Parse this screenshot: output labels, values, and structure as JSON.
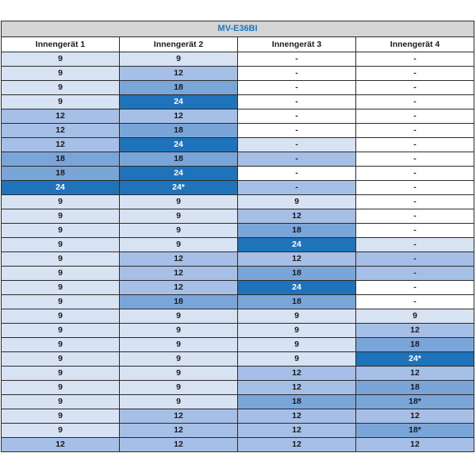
{
  "title": "MV-E36BI",
  "headers": [
    "Innengerät 1",
    "Innengerät 2",
    "Innengerät 3",
    "Innengerät 4"
  ],
  "rows": [
    [
      "9",
      "9",
      "-",
      "-"
    ],
    [
      "9",
      "12",
      "-",
      "-"
    ],
    [
      "9",
      "18",
      "-",
      "-"
    ],
    [
      "9",
      "24",
      "-",
      "-"
    ],
    [
      "12",
      "12",
      "-",
      "-"
    ],
    [
      "12",
      "18",
      "-",
      "-"
    ],
    [
      "12",
      "24",
      "-",
      "-"
    ],
    [
      "18",
      "18",
      "-",
      "-"
    ],
    [
      "18",
      "24",
      "-",
      "-"
    ],
    [
      "24",
      "24*",
      "-",
      "-"
    ],
    [
      "9",
      "9",
      "9",
      "-"
    ],
    [
      "9",
      "9",
      "12",
      "-"
    ],
    [
      "9",
      "9",
      "18",
      "-"
    ],
    [
      "9",
      "9",
      "24",
      "-"
    ],
    [
      "9",
      "12",
      "12",
      "-"
    ],
    [
      "9",
      "12",
      "18",
      "-"
    ],
    [
      "9",
      "12",
      "24",
      "-"
    ],
    [
      "9",
      "18",
      "18",
      "-"
    ],
    [
      "9",
      "9",
      "9",
      "9"
    ],
    [
      "9",
      "9",
      "9",
      "12"
    ],
    [
      "9",
      "9",
      "9",
      "18"
    ],
    [
      "9",
      "9",
      "9",
      "24*"
    ],
    [
      "9",
      "9",
      "12",
      "12"
    ],
    [
      "9",
      "9",
      "12",
      "18"
    ],
    [
      "9",
      "9",
      "18",
      "18*"
    ],
    [
      "9",
      "12",
      "12",
      "12"
    ],
    [
      "9",
      "12",
      "12",
      "18*"
    ],
    [
      "12",
      "12",
      "12",
      "12"
    ]
  ],
  "shades": [
    [
      1,
      1,
      0,
      0
    ],
    [
      1,
      2,
      0,
      0
    ],
    [
      1,
      3,
      0,
      0
    ],
    [
      1,
      4,
      0,
      0
    ],
    [
      2,
      2,
      0,
      0
    ],
    [
      2,
      3,
      0,
      0
    ],
    [
      2,
      4,
      1,
      0
    ],
    [
      3,
      3,
      2,
      0
    ],
    [
      3,
      4,
      0,
      0
    ],
    [
      4,
      4,
      2,
      0
    ],
    [
      1,
      1,
      1,
      0
    ],
    [
      1,
      1,
      2,
      0
    ],
    [
      1,
      1,
      3,
      0
    ],
    [
      1,
      1,
      4,
      1
    ],
    [
      1,
      2,
      2,
      2
    ],
    [
      1,
      2,
      3,
      2
    ],
    [
      1,
      2,
      4,
      0
    ],
    [
      1,
      3,
      3,
      0
    ],
    [
      1,
      1,
      1,
      1
    ],
    [
      1,
      1,
      1,
      2
    ],
    [
      1,
      1,
      1,
      3
    ],
    [
      1,
      1,
      1,
      4
    ],
    [
      1,
      1,
      2,
      2
    ],
    [
      1,
      1,
      2,
      3
    ],
    [
      1,
      1,
      3,
      3
    ],
    [
      1,
      2,
      2,
      2
    ],
    [
      1,
      2,
      2,
      3
    ],
    [
      2,
      2,
      2,
      2
    ]
  ]
}
